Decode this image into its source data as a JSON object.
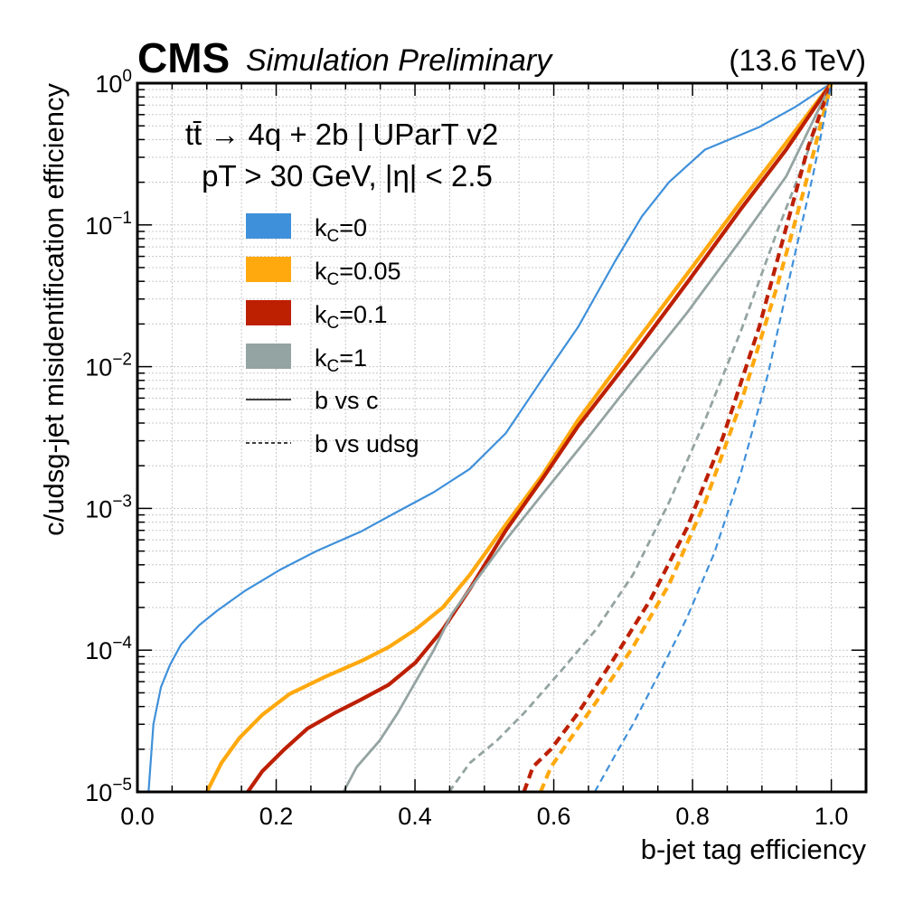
{
  "header": {
    "experiment": "CMS",
    "status": "Simulation Preliminary",
    "energy": "(13.6 TeV)"
  },
  "annotations": {
    "line1": "tt̄ → 4q + 2b | UParT v2",
    "line2": "pT > 30 GeV, |η| < 2.5"
  },
  "chart_data": {
    "type": "line",
    "title": "",
    "xlabel": "b-jet tag efficiency",
    "ylabel": "c/udsg-jet misidentification efficiency",
    "xlim": [
      0.0,
      1.05
    ],
    "ylim": [
      1e-05,
      1.0
    ],
    "yscale": "log",
    "grid": true,
    "legend_position": "upper-left",
    "x_ticks": [
      "0.0",
      "0.2",
      "0.4",
      "0.6",
      "0.8",
      "1.0"
    ],
    "x_tick_values": [
      0.0,
      0.2,
      0.4,
      0.6,
      0.8,
      1.0
    ],
    "y_ticks": [
      {
        "base": "10",
        "exp": "0",
        "value": 1
      },
      {
        "base": "10",
        "exp": "−1",
        "value": 0.1
      },
      {
        "base": "10",
        "exp": "−2",
        "value": 0.01
      },
      {
        "base": "10",
        "exp": "−3",
        "value": 0.001
      },
      {
        "base": "10",
        "exp": "−4",
        "value": 0.0001
      },
      {
        "base": "10",
        "exp": "−5",
        "value": 1e-05
      }
    ],
    "legend": [
      {
        "type": "patch",
        "k": "C",
        "label": "=0",
        "color": "#3f90da"
      },
      {
        "type": "patch",
        "k": "C",
        "label": "=0.05",
        "color": "#ffa90e"
      },
      {
        "type": "patch",
        "k": "C",
        "label": "=0.1",
        "color": "#bd1f01"
      },
      {
        "type": "patch",
        "k": "C",
        "label": "=1",
        "color": "#94a4a2"
      },
      {
        "type": "line",
        "style": "solid",
        "label": "b vs c"
      },
      {
        "type": "line",
        "style": "dashed",
        "label": "b vs udsg"
      }
    ],
    "series": [
      {
        "name": "kC=0 b vs c",
        "color": "#3f90da",
        "style": "solid",
        "width": "thin",
        "x": [
          0.016,
          0.023,
          0.034,
          0.047,
          0.063,
          0.089,
          0.115,
          0.154,
          0.206,
          0.258,
          0.323,
          0.375,
          0.427,
          0.479,
          0.531,
          0.583,
          0.635,
          0.688,
          0.727,
          0.766,
          0.818,
          0.896,
          0.948,
          1.0
        ],
        "y": [
          1e-05,
          3e-05,
          5.5e-05,
          7.9e-05,
          0.00011,
          0.00015,
          0.00019,
          0.00026,
          0.00037,
          0.0005,
          0.00069,
          0.00095,
          0.0013,
          0.0019,
          0.0034,
          0.0081,
          0.019,
          0.055,
          0.115,
          0.2,
          0.34,
          0.49,
          0.68,
          1.0
        ]
      },
      {
        "name": "kC=0.05 b vs c",
        "color": "#ffa90e",
        "style": "solid",
        "width": "thick",
        "x": [
          0.1,
          0.121,
          0.147,
          0.18,
          0.219,
          0.271,
          0.323,
          0.362,
          0.401,
          0.44,
          0.479,
          0.531,
          0.583,
          0.635,
          0.714,
          0.792,
          0.87,
          0.935,
          1.0
        ],
        "y": [
          1e-05,
          1.6e-05,
          2.4e-05,
          3.5e-05,
          4.9e-05,
          6.5e-05,
          8.4e-05,
          0.000105,
          0.00014,
          0.0002,
          0.00034,
          0.00077,
          0.0017,
          0.0042,
          0.014,
          0.045,
          0.146,
          0.38,
          1.0
        ]
      },
      {
        "name": "kC=0.1 b vs c",
        "color": "#bd1f01",
        "style": "solid",
        "width": "thick",
        "x": [
          0.159,
          0.18,
          0.212,
          0.245,
          0.284,
          0.323,
          0.362,
          0.401,
          0.44,
          0.479,
          0.531,
          0.583,
          0.635,
          0.714,
          0.792,
          0.87,
          0.935,
          1.0
        ],
        "y": [
          1e-05,
          1.4e-05,
          2e-05,
          2.8e-05,
          3.6e-05,
          4.5e-05,
          5.7e-05,
          8.2e-05,
          0.00014,
          0.00027,
          0.0007,
          0.0016,
          0.0038,
          0.012,
          0.039,
          0.13,
          0.34,
          1.0
        ]
      },
      {
        "name": "kC=1 b vs c",
        "color": "#94a4a2",
        "style": "solid",
        "width": "medium",
        "x": [
          0.297,
          0.316,
          0.349,
          0.375,
          0.401,
          0.427,
          0.453,
          0.492,
          0.531,
          0.583,
          0.648,
          0.714,
          0.792,
          0.87,
          0.935,
          1.0
        ],
        "y": [
          1e-05,
          1.5e-05,
          2.3e-05,
          3.6e-05,
          6e-05,
          0.0001,
          0.00018,
          0.00033,
          0.0006,
          0.00125,
          0.0031,
          0.008,
          0.024,
          0.079,
          0.22,
          1.0
        ]
      },
      {
        "name": "kC=1 b vs udsg",
        "color": "#94a4a2",
        "style": "dashed",
        "width": "medium",
        "x": [
          0.449,
          0.479,
          0.518,
          0.557,
          0.609,
          0.661,
          0.714,
          0.766,
          0.818,
          0.87,
          0.922,
          0.961,
          1.0
        ],
        "y": [
          1e-05,
          1.6e-05,
          2.3e-05,
          3.6e-05,
          7e-05,
          0.00014,
          0.00034,
          0.0011,
          0.0042,
          0.018,
          0.09,
          0.28,
          1.0
        ]
      },
      {
        "name": "kC=0.1 b vs udsg",
        "color": "#bd1f01",
        "style": "dashed",
        "width": "thick",
        "x": [
          0.557,
          0.57,
          0.596,
          0.635,
          0.688,
          0.74,
          0.792,
          0.844,
          0.896,
          0.935,
          0.967,
          1.0
        ],
        "y": [
          1e-05,
          1.5e-05,
          2e-05,
          3.6e-05,
          8.9e-05,
          0.00023,
          0.00073,
          0.0032,
          0.019,
          0.096,
          0.36,
          1.0
        ]
      },
      {
        "name": "kC=0.05 b vs udsg",
        "color": "#ffa90e",
        "style": "dashed",
        "width": "thick",
        "x": [
          0.581,
          0.596,
          0.622,
          0.661,
          0.714,
          0.766,
          0.818,
          0.87,
          0.922,
          0.961,
          1.0
        ],
        "y": [
          1e-05,
          1.5e-05,
          2.3e-05,
          4.3e-05,
          0.000105,
          0.00029,
          0.0011,
          0.0056,
          0.037,
          0.18,
          1.0
        ]
      },
      {
        "name": "kC=0 b vs udsg",
        "color": "#3f90da",
        "style": "dashed",
        "width": "thin",
        "x": [
          0.659,
          0.688,
          0.714,
          0.753,
          0.792,
          0.831,
          0.87,
          0.909,
          0.941,
          0.974,
          1.0
        ],
        "y": [
          1e-05,
          1.8e-05,
          3e-05,
          7e-05,
          0.00017,
          0.00048,
          0.0018,
          0.009,
          0.045,
          0.23,
          1.0
        ]
      }
    ]
  }
}
